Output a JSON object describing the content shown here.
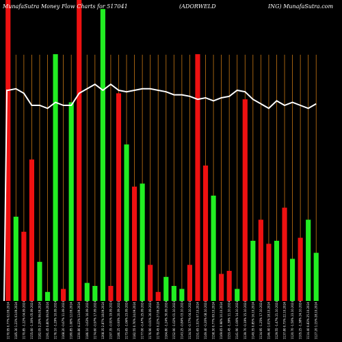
{
  "chart_data": {
    "type": "bar",
    "title_left": "MunafaSutra  Money Flow  Charts for 517041",
    "title_mid": "(ADORWELD",
    "title_right": "ING) MunafaSutra.com",
    "colors": {
      "background": "#000000",
      "up": "#22ee22",
      "down": "#ee1111",
      "grid": "#c87814",
      "line": "#ffffff",
      "text": "#ffffff"
    },
    "ylim": [
      0,
      100
    ],
    "x": [
      "1170.95 0.77% 02.09.2024",
      "1185.30 1.23% 03.09.2024",
      "1170.85 -1.22% 04.09.2024",
      "1155.60 -1.30% 05.09.2024",
      "1182.05 2.29% 06.09.2024",
      "1191.45 0.80% 09.09.2024",
      "1176.10 -1.29% 10.09.2024",
      "1168.20 -0.67% 11.09.2024",
      "1180.85 1.08% 12.09.2024",
      "1230.80 4.23% 13.09.2024",
      "1186.10 -3.63% 16.09.2024",
      "1174.60 -0.97% 17.09.2024",
      "1208.35 2.87% 18.09.2024",
      "1197.35 -0.91% 19.09.2024",
      "1186.25 -0.93% 20.09.2024",
      "1173.65 -1.06% 23.09.2024",
      "1182.55 0.76% 24.09.2024",
      "1177.00 -0.47% 25.09.2024",
      "1176.90 -0.01% 26.09.2024",
      "1179.45 0.22% 27.09.2024",
      "1164.80 -1.24% 30.09.2024",
      "1152.90 -1.02% 01.10.2024",
      "1143.25 -0.84% 03.10.2024",
      "1134.50 -0.77% 04.10.2024",
      "1151.65 1.51% 07.10.2024",
      "1149.40 -0.20% 08.10.2024",
      "1158.30 0.77% 09.10.2024",
      "1169.65 0.98% 10.10.2024",
      "1153.45 -1.39% 11.10.2024",
      "1141.90 -1.00% 14.10.2024",
      "1139.70 -0.19% 15.10.2024",
      "1149.35 0.85% 16.10.2024",
      "1134.95 -1.25% 17.10.2024",
      "1146.40 1.01% 18.10.2024",
      "1129.55 -1.47% 21.10.2024",
      "1137.80 0.73% 22.10.2024",
      "1120.70 -1.50% 23.10.2024",
      "1105.25 -1.38% 24.10.2024",
      "1114.40 0.83% 25.10.2024",
      "1127.20 1.15% 28.10.2024"
    ],
    "colors_by_bar": [
      "red",
      "green",
      "red",
      "red",
      "green",
      "green",
      "green",
      "red",
      "green",
      "red",
      "green",
      "green",
      "green",
      "red",
      "red",
      "green",
      "red",
      "green",
      "red",
      "red",
      "green",
      "green",
      "green",
      "red",
      "red",
      "red",
      "green",
      "red",
      "red",
      "green",
      "red",
      "green",
      "red",
      "red",
      "green",
      "red",
      "green",
      "red",
      "green",
      "green"
    ],
    "values": [
      100,
      28,
      23,
      47,
      13,
      3,
      82,
      4,
      66,
      100,
      6,
      5,
      97,
      5,
      69,
      52,
      38,
      39,
      12,
      3,
      8,
      5,
      4,
      12,
      82,
      45,
      35,
      9,
      10,
      4,
      67,
      20,
      27,
      19,
      20,
      31,
      14,
      21,
      27,
      16
    ],
    "line": [
      70,
      70.5,
      69,
      65,
      65,
      64,
      66,
      65,
      65,
      69,
      70.5,
      72,
      70,
      72,
      70,
      69.5,
      70,
      70.5,
      70.5,
      70,
      69.5,
      68.5,
      68.5,
      68,
      67,
      67.5,
      66.5,
      67.5,
      68,
      70,
      69.5,
      67,
      65.5,
      64,
      66.5,
      65,
      66,
      65,
      64,
      65.5
    ]
  }
}
